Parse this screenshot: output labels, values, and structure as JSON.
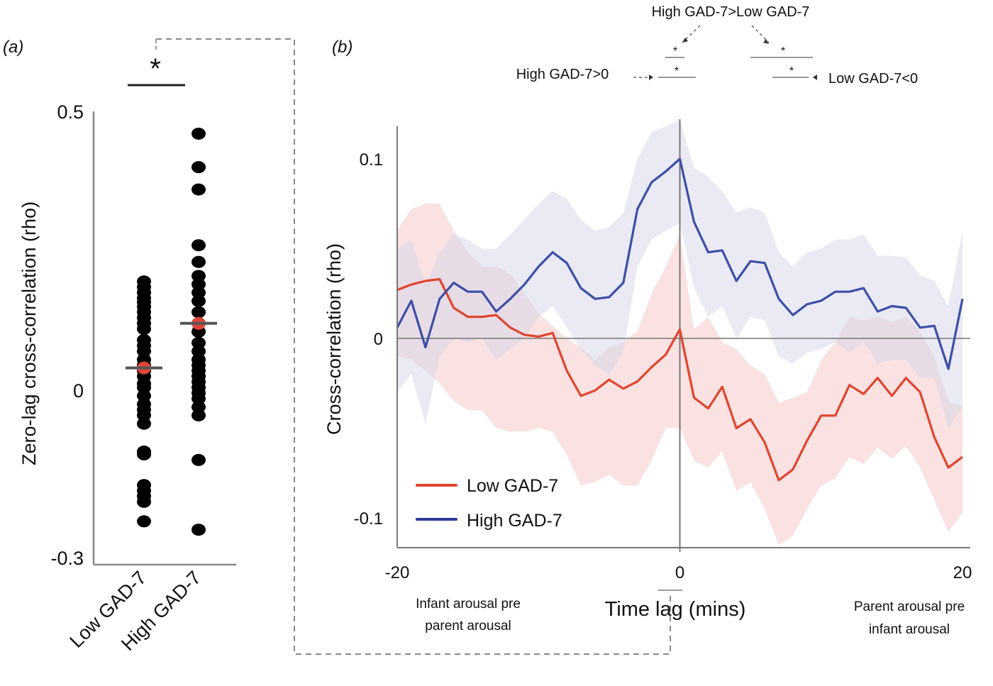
{
  "figure": {
    "panel_a_label": "(a)",
    "panel_b_label": "(b)"
  },
  "chart_data": [
    {
      "id": "panel-a",
      "type": "scatter",
      "title": "",
      "xlabel": "",
      "ylabel": "Zero-lag cross-correlation (rho)",
      "ylim": [
        -0.3,
        0.5
      ],
      "yticks": [
        0.5,
        0,
        -0.3
      ],
      "ytick_labels": [
        "0.5",
        "0",
        "-0.3"
      ],
      "categories": [
        "Low GAD-7",
        "High GAD-7"
      ],
      "significance": {
        "label": "*",
        "between": [
          "Low GAD-7",
          "High GAD-7"
        ]
      },
      "series": [
        {
          "name": "Low GAD-7",
          "points": [
            0.195,
            0.185,
            0.175,
            0.165,
            0.158,
            0.15,
            0.14,
            0.13,
            0.12,
            0.11,
            0.09,
            0.08,
            0.07,
            0.055,
            0.045,
            0.035,
            0.025,
            0.012,
            0.005,
            -0.01,
            -0.025,
            -0.035,
            -0.045,
            -0.06,
            -0.11,
            -0.115,
            -0.17,
            -0.18,
            -0.19,
            -0.2,
            -0.235
          ],
          "mean": 0.04,
          "mean_color": "#e0453a"
        },
        {
          "name": "High GAD-7",
          "points": [
            0.46,
            0.4,
            0.36,
            0.26,
            0.23,
            0.205,
            0.19,
            0.175,
            0.16,
            0.14,
            0.12,
            0.105,
            0.085,
            0.07,
            0.055,
            0.045,
            0.035,
            0.025,
            0.015,
            0.005,
            -0.005,
            -0.015,
            -0.03,
            -0.045,
            -0.125,
            -0.25
          ],
          "mean": 0.12,
          "mean_color": "#e0453a"
        }
      ]
    },
    {
      "id": "panel-b",
      "type": "line",
      "title": "",
      "xlabel": "Time lag (mins)",
      "ylabel": "Cross-correlation (rho)",
      "xlim": [
        -20,
        20
      ],
      "ylim": [
        -0.117,
        0.12
      ],
      "xticks": [
        -20,
        0,
        20
      ],
      "xtick_labels": [
        "-20",
        "0",
        "20"
      ],
      "yticks": [
        0.1,
        0,
        -0.1
      ],
      "ytick_labels": [
        "0.1",
        "0",
        "-0.1"
      ],
      "x_annotations": {
        "left": [
          "Infant arousal pre",
          "parent arousal"
        ],
        "right": [
          "Parent arousal pre",
          "infant arousal"
        ]
      },
      "legend": {
        "placement": "bottom-left",
        "entries": [
          "Low GAD-7",
          "High GAD-7"
        ]
      },
      "reference_lines": {
        "x": 0,
        "y": 0
      },
      "x": [
        -20,
        -19,
        -18,
        -17,
        -16,
        -15,
        -14,
        -13,
        -12,
        -11,
        -10,
        -9,
        -8,
        -7,
        -6,
        -5,
        -4,
        -3,
        -2,
        -1,
        0,
        1,
        2,
        3,
        4,
        5,
        6,
        7,
        8,
        9,
        10,
        11,
        12,
        13,
        14,
        15,
        16,
        17,
        18,
        19,
        20
      ],
      "series": [
        {
          "name": "Low GAD-7",
          "color": "#e0452f",
          "band_color": "#f4c6c4",
          "values": [
            0.027,
            0.03,
            0.032,
            0.033,
            0.017,
            0.012,
            0.012,
            0.013,
            0.006,
            0.002,
            0.001,
            0.003,
            -0.018,
            -0.032,
            -0.029,
            -0.023,
            -0.028,
            -0.024,
            -0.016,
            -0.009,
            0.005,
            -0.033,
            -0.039,
            -0.027,
            -0.05,
            -0.045,
            -0.058,
            -0.079,
            -0.073,
            -0.057,
            -0.043,
            -0.043,
            -0.026,
            -0.031,
            -0.022,
            -0.032,
            -0.022,
            -0.03,
            -0.055,
            -0.072,
            -0.066
          ],
          "upper": [
            0.06,
            0.072,
            0.075,
            0.075,
            0.06,
            0.048,
            0.04,
            0.04,
            0.036,
            0.025,
            0.014,
            0.007,
            0.0,
            -0.005,
            -0.012,
            -0.005,
            -0.002,
            0.004,
            0.025,
            0.04,
            0.058,
            0.005,
            0.012,
            -0.002,
            -0.006,
            -0.015,
            -0.02,
            -0.036,
            -0.033,
            -0.03,
            -0.012,
            -0.002,
            0.012,
            0.01,
            0.012,
            0.009,
            0.012,
            0.004,
            -0.01,
            -0.035,
            -0.038
          ],
          "lower": [
            -0.01,
            -0.012,
            -0.018,
            -0.025,
            -0.035,
            -0.04,
            -0.04,
            -0.05,
            -0.052,
            -0.052,
            -0.05,
            -0.052,
            -0.065,
            -0.082,
            -0.08,
            -0.076,
            -0.082,
            -0.082,
            -0.068,
            -0.05,
            -0.05,
            -0.068,
            -0.072,
            -0.063,
            -0.085,
            -0.08,
            -0.095,
            -0.115,
            -0.11,
            -0.095,
            -0.082,
            -0.078,
            -0.066,
            -0.07,
            -0.061,
            -0.067,
            -0.06,
            -0.072,
            -0.09,
            -0.108,
            -0.097
          ]
        },
        {
          "name": "High GAD-7",
          "color": "#3c4fa6",
          "band_color": "#d6d6ec",
          "values": [
            0.006,
            0.021,
            -0.005,
            0.022,
            0.031,
            0.026,
            0.026,
            0.015,
            0.022,
            0.03,
            0.04,
            0.048,
            0.042,
            0.028,
            0.022,
            0.023,
            0.031,
            0.072,
            0.087,
            0.093,
            0.1,
            0.065,
            0.048,
            0.049,
            0.032,
            0.043,
            0.042,
            0.022,
            0.013,
            0.019,
            0.021,
            0.026,
            0.026,
            0.028,
            0.015,
            0.018,
            0.017,
            0.006,
            0.007,
            -0.017,
            0.022
          ],
          "upper": [
            0.05,
            0.055,
            0.03,
            0.048,
            0.058,
            0.055,
            0.05,
            0.05,
            0.058,
            0.066,
            0.075,
            0.082,
            0.078,
            0.066,
            0.06,
            0.062,
            0.07,
            0.1,
            0.115,
            0.118,
            0.122,
            0.095,
            0.09,
            0.082,
            0.07,
            0.073,
            0.07,
            0.048,
            0.04,
            0.048,
            0.05,
            0.055,
            0.055,
            0.058,
            0.046,
            0.046,
            0.045,
            0.035,
            0.032,
            0.018,
            0.06
          ],
          "lower": [
            -0.03,
            -0.02,
            -0.048,
            -0.01,
            0.0,
            -0.002,
            0.0,
            -0.012,
            -0.006,
            0.0,
            0.012,
            0.018,
            0.006,
            -0.006,
            -0.015,
            -0.02,
            -0.008,
            0.04,
            0.055,
            0.06,
            0.064,
            0.028,
            0.012,
            0.018,
            0.0,
            0.012,
            0.01,
            -0.01,
            -0.014,
            -0.008,
            -0.006,
            -0.002,
            -0.008,
            -0.002,
            -0.014,
            -0.012,
            -0.012,
            -0.022,
            -0.022,
            -0.05,
            -0.038
          ]
        }
      ],
      "significance_annotations": [
        {
          "label": "High GAD-7>Low GAD-7",
          "marks": [
            "*",
            "*"
          ]
        },
        {
          "label": "High GAD-7>0",
          "marks": [
            "*"
          ]
        },
        {
          "label": "Low GAD-7<0",
          "marks": [
            "*"
          ]
        }
      ]
    }
  ]
}
